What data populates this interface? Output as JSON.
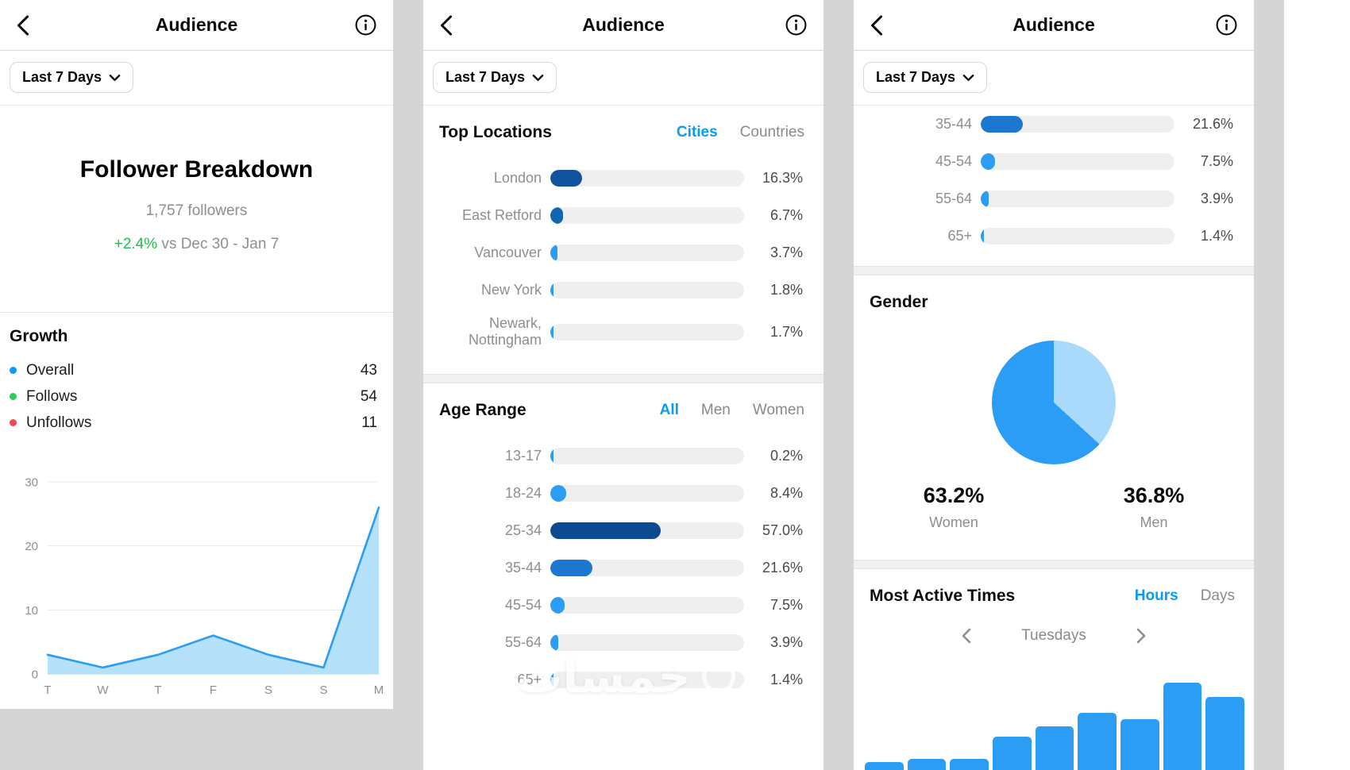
{
  "watermark": "خمسات",
  "shared": {
    "title": "Audience",
    "range_label": "Last 7 Days"
  },
  "panel_follower": {
    "heading": "Follower Breakdown",
    "followers_count": "1,757 followers",
    "change_pct": "+2.4%",
    "change_context": "vs Dec 30 - Jan 7",
    "growth_title": "Growth",
    "legend": [
      {
        "label": "Overall",
        "value": "43",
        "color": "#0a9bf5"
      },
      {
        "label": "Follows",
        "value": "54",
        "color": "#2ecc55"
      },
      {
        "label": "Unfollows",
        "value": "11",
        "color": "#ed4956"
      }
    ],
    "chart_data": {
      "type": "area",
      "title": "Growth",
      "x": [
        "T",
        "W",
        "T",
        "F",
        "S",
        "S",
        "M"
      ],
      "series": [
        {
          "name": "Overall",
          "values": [
            3,
            1,
            3,
            6,
            3,
            1,
            26
          ]
        }
      ],
      "ylim": [
        0,
        30
      ],
      "yticks": [
        0,
        10,
        20,
        30
      ],
      "line_color": "#2b9df4",
      "fill_color": "#b5e1fb"
    }
  },
  "panel_locations": {
    "locations": {
      "title": "Top Locations",
      "tabs": [
        {
          "label": "Cities"
        },
        {
          "label": "Countries"
        }
      ],
      "active_tab": "Cities",
      "chart_data": {
        "type": "bar",
        "title": "Top Locations (Cities)",
        "categories": [
          "London",
          "East Retford",
          "Vancouver",
          "New York",
          "Newark, Nottingham"
        ],
        "values": [
          16.3,
          6.7,
          3.7,
          1.8,
          1.7
        ],
        "unit": "%"
      },
      "rows": [
        {
          "label": "London",
          "value": 16.3,
          "pct": "16.3%",
          "color": "#11529f"
        },
        {
          "label": "East Retford",
          "value": 6.7,
          "pct": "6.7%",
          "color": "#1166b0"
        },
        {
          "label": "Vancouver",
          "value": 3.7,
          "pct": "3.7%",
          "color": "#2b9df4"
        },
        {
          "label": "New York",
          "value": 1.8,
          "pct": "1.8%",
          "color": "#2b9df4"
        },
        {
          "label": "Newark,\nNottingham",
          "value": 1.7,
          "pct": "1.7%",
          "color": "#2b9df4"
        }
      ]
    },
    "age_range": {
      "title": "Age Range",
      "tabs": [
        {
          "label": "All"
        },
        {
          "label": "Men"
        },
        {
          "label": "Women"
        }
      ],
      "active_tab": "All",
      "chart_data": {
        "type": "bar",
        "title": "Age Range (All)",
        "categories": [
          "13-17",
          "18-24",
          "25-34",
          "35-44",
          "45-54",
          "55-64",
          "65+"
        ],
        "values": [
          0.2,
          8.4,
          57.0,
          21.6,
          7.5,
          3.9,
          1.4
        ],
        "unit": "%"
      },
      "rows": [
        {
          "label": "13-17",
          "value": 0.2,
          "pct": "0.2%",
          "color": "#2b9df4"
        },
        {
          "label": "18-24",
          "value": 8.4,
          "pct": "8.4%",
          "color": "#2b9df4"
        },
        {
          "label": "25-34",
          "value": 57.0,
          "pct": "57.0%",
          "color": "#0d4a8f"
        },
        {
          "label": "35-44",
          "value": 21.6,
          "pct": "21.6%",
          "color": "#1b77cf"
        },
        {
          "label": "45-54",
          "value": 7.5,
          "pct": "7.5%",
          "color": "#2b9df4"
        },
        {
          "label": "55-64",
          "value": 3.9,
          "pct": "3.9%",
          "color": "#2b9df4"
        },
        {
          "label": "65+",
          "value": 1.4,
          "pct": "1.4%",
          "color": "#2b9df4"
        }
      ]
    }
  },
  "panel_gender": {
    "age_rows": [
      {
        "label": "35-44",
        "value": 21.6,
        "pct": "21.6%",
        "color": "#1b77cf"
      },
      {
        "label": "45-54",
        "value": 7.5,
        "pct": "7.5%",
        "color": "#2b9df4"
      },
      {
        "label": "55-64",
        "value": 3.9,
        "pct": "3.9%",
        "color": "#2b9df4"
      },
      {
        "label": "65+",
        "value": 1.4,
        "pct": "1.4%",
        "color": "#2b9df4"
      }
    ],
    "gender": {
      "title": "Gender",
      "stats": [
        {
          "pct": "63.2%",
          "label": "Women"
        },
        {
          "pct": "36.8%",
          "label": "Men"
        }
      ],
      "chart_data": {
        "type": "pie",
        "title": "Gender",
        "labels": [
          "Women",
          "Men"
        ],
        "values": [
          63.2,
          36.8
        ],
        "colors": [
          "#2b9df4",
          "#a9d9fb"
        ]
      }
    },
    "most_active": {
      "title": "Most Active Times",
      "tabs": [
        {
          "label": "Hours"
        },
        {
          "label": "Days"
        }
      ],
      "active_tab": "Hours",
      "day_label": "Tuesdays",
      "chart_data": {
        "type": "bar",
        "title": "Most Active Times (Hours, Tuesdays)",
        "values": [
          10,
          14,
          14,
          42,
          55,
          72,
          64,
          110,
          92
        ]
      }
    }
  }
}
